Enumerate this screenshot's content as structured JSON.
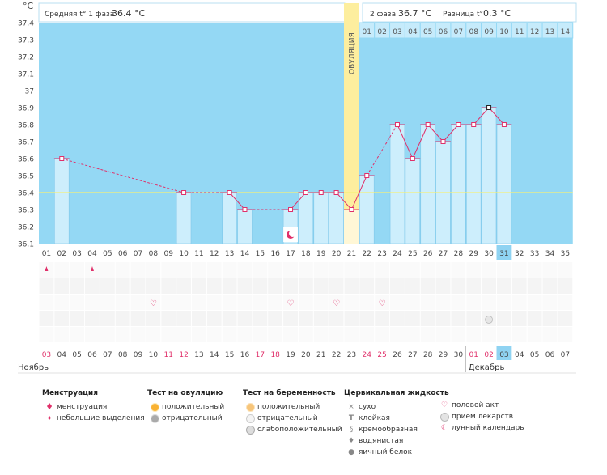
{
  "header": {
    "unit": "°C",
    "phase1_label": "Средняя t° 1 фаза",
    "phase1_value": "36.4 °C",
    "phase2_label": "2 фаза",
    "phase2_value": "36.7 °C",
    "diff_label": "Разница t°",
    "diff_value": "0.3 °C",
    "ovulation_label": "ОВУЛЯЦИЯ"
  },
  "chart_data": {
    "type": "bar",
    "ylim": [
      36.1,
      37.4
    ],
    "yticks": [
      "37.4",
      "37.3",
      "37.2",
      "37.1",
      "37",
      "36.9",
      "36.8",
      "36.7",
      "36.6",
      "36.5",
      "36.4",
      "36.3",
      "36.2",
      "36.1"
    ],
    "cycle_days": [
      "01",
      "02",
      "03",
      "04",
      "05",
      "06",
      "07",
      "08",
      "09",
      "10",
      "11",
      "12",
      "13",
      "14",
      "15",
      "16",
      "17",
      "18",
      "19",
      "20",
      "21",
      "22",
      "23",
      "24",
      "25",
      "26",
      "27",
      "28",
      "29",
      "30",
      "31",
      "32",
      "33",
      "34",
      "35"
    ],
    "phase2_days": [
      "01",
      "02",
      "03",
      "04",
      "05",
      "06",
      "07",
      "08",
      "09",
      "10",
      "11",
      "12",
      "13",
      "14"
    ],
    "temperatures": [
      null,
      36.6,
      null,
      null,
      null,
      null,
      null,
      null,
      null,
      36.4,
      null,
      null,
      36.4,
      36.3,
      null,
      null,
      36.3,
      36.4,
      36.4,
      36.4,
      36.3,
      36.5,
      null,
      36.8,
      36.6,
      36.8,
      36.7,
      36.8,
      36.8,
      36.9,
      36.8,
      null,
      null,
      null,
      null
    ],
    "coverline": 36.4,
    "ovulation_day": 21,
    "highlight_day": 31,
    "dates": [
      "03",
      "04",
      "05",
      "06",
      "07",
      "08",
      "09",
      "10",
      "11",
      "12",
      "13",
      "14",
      "15",
      "16",
      "17",
      "18",
      "19",
      "20",
      "21",
      "22",
      "23",
      "24",
      "25",
      "26",
      "27",
      "28",
      "29",
      "30",
      "01",
      "02",
      "03",
      "04",
      "05",
      "06",
      "07"
    ],
    "red_dates": [
      0,
      8,
      9,
      14,
      15,
      21,
      22,
      28,
      29
    ],
    "months": [
      "Ноябрь",
      "Декабрь"
    ]
  },
  "markers": {
    "menstruation": [
      1,
      4
    ],
    "intercourse": [
      8,
      17,
      20,
      23
    ],
    "medication": [
      30
    ],
    "lunar_day": 17
  },
  "legend": {
    "menstruation": {
      "title": "Менструация",
      "items": [
        "менструация",
        "небольшие выделения"
      ]
    },
    "ovulation_test": {
      "title": "Тест на овуляцию",
      "items": [
        "положительный",
        "отрицательный"
      ]
    },
    "pregnancy_test": {
      "title": "Тест на беременность",
      "items": [
        "положительный",
        "отрицательный",
        "слабоположительный"
      ]
    },
    "cervical": {
      "title": "Цервикальная жидкость",
      "items": [
        "сухо",
        "клейкая",
        "кремообразная",
        "водянистая",
        "яичный белок"
      ]
    },
    "other": [
      "половой акт",
      "прием лекарств",
      "лунный календарь"
    ]
  },
  "colors": {
    "plot_bg": "#94d8f4",
    "bar_fill": "#cdeefc",
    "bar_stroke": "#7fc8ea",
    "ovulation": "#fdee9e",
    "line": "#e0306a",
    "coverline": "#f5f078",
    "weekend": "#e0306a",
    "highlight": "#8fd3f2"
  }
}
